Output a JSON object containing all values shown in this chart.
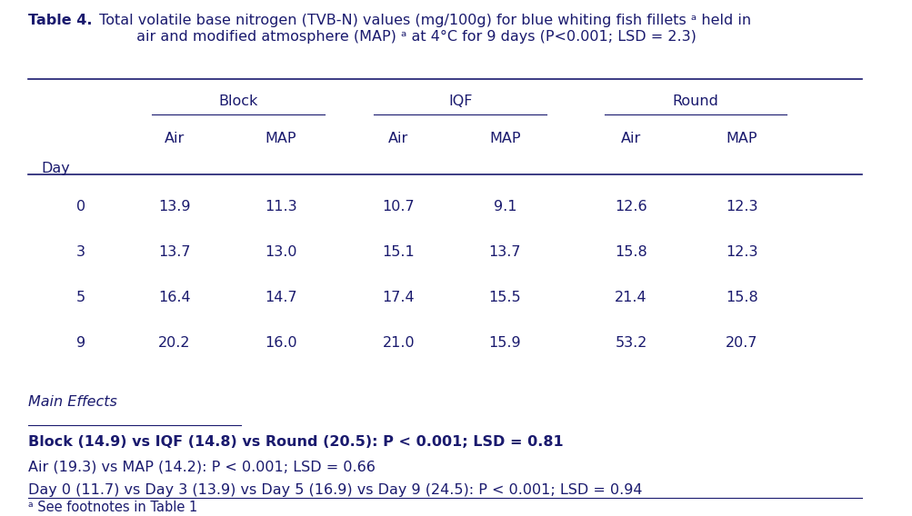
{
  "title_bold": "Table 4.",
  "title_normal": " Total volatile base nitrogen (TVB-N) values (mg/100g) for blue whiting fish fillets ᵃ held in\n         air and modified atmosphere (MAP) ᵃ at 4°C for 9 days (P<0.001; LSD = 2.3)",
  "col_groups": [
    "Block",
    "IQF",
    "Round"
  ],
  "col_subheaders": [
    "Air",
    "MAP",
    "Air",
    "MAP",
    "Air",
    "MAP"
  ],
  "row_label": "Day",
  "days": [
    "0",
    "3",
    "5",
    "9"
  ],
  "data": [
    [
      "13.9",
      "11.3",
      "10.7",
      "9.1",
      "12.6",
      "12.3"
    ],
    [
      "13.7",
      "13.0",
      "15.1",
      "13.7",
      "15.8",
      "12.3"
    ],
    [
      "16.4",
      "14.7",
      "17.4",
      "15.5",
      "21.4",
      "15.8"
    ],
    [
      "20.2",
      "16.0",
      "21.0",
      "15.9",
      "53.2",
      "20.7"
    ]
  ],
  "main_effects_label": "Main Effects",
  "bold_line": "Block (14.9) vs IQF (14.8) vs Round (20.5): P < 0.001; LSD = 0.81",
  "normal_line1": "Air (19.3) vs MAP (14.2): P < 0.001; LSD = 0.66",
  "normal_line2": "Day 0 (11.7) vs Day 3 (13.9) vs Day 5 (16.9) vs Day 9 (24.5): P < 0.001; LSD = 0.94",
  "footnote": "ᵃ See footnotes in Table 1",
  "text_color": "#1a1a6e",
  "bg_color": "#ffffff"
}
